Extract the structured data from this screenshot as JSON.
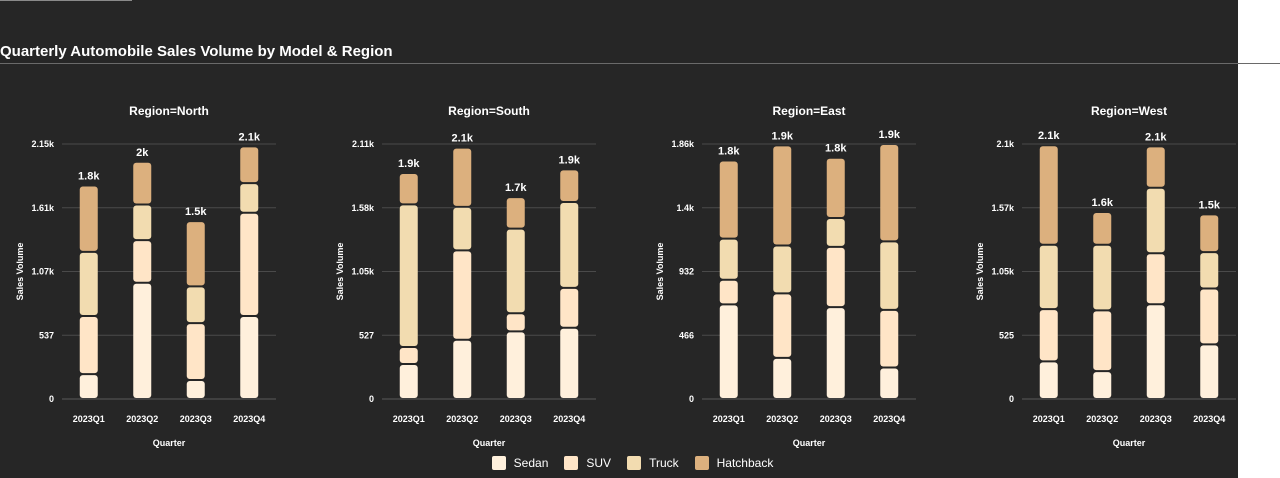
{
  "title": "Quarterly Automobile Sales Volume by Model & Region",
  "colors": {
    "background": "#262626",
    "Sedan": "#fff0dc",
    "SUV": "#ffe5c7",
    "Truck": "#f2dcb0",
    "Hatchback": "#dcb07e"
  },
  "chart_data": {
    "type": "bar",
    "stacked": true,
    "xlabel": "Quarter",
    "ylabel": "Sales Volume",
    "grid": true,
    "legend_position": "bottom-center",
    "categories": [
      "2023Q1",
      "2023Q2",
      "2023Q3",
      "2023Q4"
    ],
    "series_names": [
      "Sedan",
      "SUV",
      "Truck",
      "Hatchback"
    ],
    "panels": [
      {
        "title": "Region=North",
        "yticks": [
          "0",
          "537",
          "1.07k",
          "1.61k",
          "2.15k"
        ],
        "ymax": 2150,
        "totals_labels": [
          "1.8k",
          "2k",
          "1.5k",
          "2.1k"
        ],
        "series": [
          {
            "name": "Sedan",
            "values": [
              210,
              980,
              160,
              700
            ]
          },
          {
            "name": "SUV",
            "values": [
              490,
              360,
              480,
              870
            ]
          },
          {
            "name": "Truck",
            "values": [
              540,
              300,
              310,
              250
            ]
          },
          {
            "name": "Hatchback",
            "values": [
              560,
              360,
              550,
              310
            ]
          }
        ]
      },
      {
        "title": "Region=South",
        "yticks": [
          "0",
          "527",
          "1.05k",
          "1.58k",
          "2.11k"
        ],
        "ymax": 2110,
        "totals_labels": [
          "1.9k",
          "2.1k",
          "1.7k",
          "1.9k"
        ],
        "series": [
          {
            "name": "Sedan",
            "values": [
              290,
              490,
              560,
              590
            ]
          },
          {
            "name": "SUV",
            "values": [
              140,
              740,
              150,
              330
            ]
          },
          {
            "name": "Truck",
            "values": [
              1180,
              360,
              700,
              710
            ]
          },
          {
            "name": "Hatchback",
            "values": [
              260,
              490,
              260,
              270
            ]
          }
        ]
      },
      {
        "title": "Region=East",
        "yticks": [
          "0",
          "466",
          "932",
          "1.4k",
          "1.86k"
        ],
        "ymax": 1860,
        "totals_labels": [
          "1.8k",
          "1.9k",
          "1.8k",
          "1.9k"
        ],
        "series": [
          {
            "name": "Sedan",
            "values": [
              690,
              300,
              670,
              230
            ]
          },
          {
            "name": "SUV",
            "values": [
              180,
              470,
              440,
              420
            ]
          },
          {
            "name": "Truck",
            "values": [
              300,
              350,
              210,
              500
            ]
          },
          {
            "name": "Hatchback",
            "values": [
              570,
              730,
              440,
              710
            ]
          }
        ]
      },
      {
        "title": "Region=West",
        "yticks": [
          "0",
          "525",
          "1.05k",
          "1.57k",
          "2.1k"
        ],
        "ymax": 2100,
        "totals_labels": [
          "2.1k",
          "1.6k",
          "2.1k",
          "1.5k"
        ],
        "series": [
          {
            "name": "Sedan",
            "values": [
              310,
              230,
              780,
              450
            ]
          },
          {
            "name": "SUV",
            "values": [
              430,
              500,
              420,
              460
            ]
          },
          {
            "name": "Truck",
            "values": [
              530,
              540,
              540,
              300
            ]
          },
          {
            "name": "Hatchback",
            "values": [
              820,
              270,
              340,
              310
            ]
          }
        ]
      }
    ]
  }
}
